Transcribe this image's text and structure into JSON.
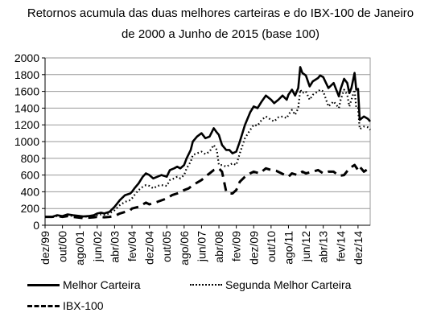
{
  "chart_data": {
    "type": "line",
    "title_line1": "Retornos acumula das duas melhores carteiras e do IBX-100 de Janeiro",
    "title_line2": "de 2000 a Junho de 2015 (base 100)",
    "xlabel": "",
    "ylabel": "",
    "ylim": [
      0,
      2000
    ],
    "yticks": [
      0,
      200,
      400,
      600,
      800,
      1000,
      1200,
      1400,
      1600,
      1800,
      2000
    ],
    "xlim": [
      1999.917,
      2015.5
    ],
    "xtick_labels": [
      "dez/99",
      "out/00",
      "ago/01",
      "jun/02",
      "abr/03",
      "fev/04",
      "dez/04",
      "out/05",
      "ago/06",
      "jun/07",
      "abr/08",
      "fev/09",
      "dez/09",
      "out/10",
      "ago/11",
      "jun/12",
      "abr/13",
      "fev/14",
      "dez/14"
    ],
    "xtick_positions": [
      1999.917,
      2000.75,
      2001.583,
      2002.417,
      2003.25,
      2004.083,
      2004.917,
      2005.75,
      2006.583,
      2007.417,
      2008.25,
      2009.083,
      2009.917,
      2010.75,
      2011.583,
      2012.417,
      2013.25,
      2014.083,
      2014.917
    ],
    "grid": "horizontal",
    "legend": "bottom",
    "series": [
      {
        "name": "Melhor Carteira",
        "style": "solid",
        "x": [
          1999.917,
          2000.25,
          2000.5,
          2000.75,
          2001.0,
          2001.25,
          2001.583,
          2001.75,
          2002.0,
          2002.25,
          2002.417,
          2002.6,
          2002.75,
          2003.0,
          2003.25,
          2003.5,
          2003.75,
          2004.0,
          2004.083,
          2004.2,
          2004.4,
          2004.6,
          2004.75,
          2004.917,
          2005.1,
          2005.3,
          2005.5,
          2005.75,
          2005.9,
          2006.1,
          2006.25,
          2006.4,
          2006.583,
          2006.7,
          2006.9,
          2007.0,
          2007.2,
          2007.417,
          2007.6,
          2007.8,
          2008.0,
          2008.15,
          2008.25,
          2008.4,
          2008.6,
          2008.75,
          2008.9,
          2009.083,
          2009.25,
          2009.5,
          2009.75,
          2009.917,
          2010.1,
          2010.3,
          2010.5,
          2010.75,
          2010.9,
          2011.1,
          2011.3,
          2011.5,
          2011.583,
          2011.75,
          2011.9,
          2012.05,
          2012.15,
          2012.25,
          2012.417,
          2012.6,
          2012.75,
          2013.0,
          2013.1,
          2013.25,
          2013.5,
          2013.75,
          2014.0,
          2014.083,
          2014.25,
          2014.4,
          2014.5,
          2014.6,
          2014.75,
          2014.833,
          2014.917,
          2015.0,
          2015.2,
          2015.4,
          2015.5
        ],
        "y": [
          100,
          100,
          120,
          110,
          130,
          120,
          110,
          105,
          110,
          120,
          140,
          150,
          140,
          160,
          220,
          300,
          360,
          380,
          400,
          440,
          500,
          580,
          620,
          600,
          560,
          580,
          600,
          580,
          660,
          680,
          700,
          680,
          720,
          800,
          900,
          1000,
          1060,
          1100,
          1040,
          1060,
          1160,
          1110,
          1080,
          960,
          900,
          900,
          860,
          880,
          1000,
          1200,
          1350,
          1420,
          1400,
          1480,
          1550,
          1500,
          1460,
          1500,
          1550,
          1500,
          1560,
          1620,
          1550,
          1640,
          1890,
          1820,
          1790,
          1660,
          1720,
          1760,
          1790,
          1770,
          1640,
          1700,
          1540,
          1630,
          1750,
          1700,
          1580,
          1640,
          1820,
          1620,
          1630,
          1260,
          1300,
          1270,
          1240
        ]
      },
      {
        "name": "Segunda Melhor Carteira",
        "style": "dotted",
        "x": [
          1999.917,
          2000.25,
          2000.5,
          2000.75,
          2001.0,
          2001.25,
          2001.583,
          2001.75,
          2002.0,
          2002.25,
          2002.417,
          2002.6,
          2002.75,
          2003.0,
          2003.25,
          2003.5,
          2003.75,
          2004.0,
          2004.083,
          2004.2,
          2004.4,
          2004.6,
          2004.75,
          2004.917,
          2005.1,
          2005.3,
          2005.5,
          2005.75,
          2005.9,
          2006.1,
          2006.25,
          2006.4,
          2006.583,
          2006.7,
          2006.9,
          2007.0,
          2007.2,
          2007.417,
          2007.6,
          2007.8,
          2008.0,
          2008.15,
          2008.25,
          2008.4,
          2008.6,
          2008.75,
          2008.9,
          2009.083,
          2009.25,
          2009.5,
          2009.75,
          2009.917,
          2010.1,
          2010.3,
          2010.5,
          2010.75,
          2010.9,
          2011.1,
          2011.3,
          2011.5,
          2011.583,
          2011.75,
          2011.9,
          2012.05,
          2012.15,
          2012.25,
          2012.417,
          2012.6,
          2012.75,
          2013.0,
          2013.1,
          2013.25,
          2013.5,
          2013.75,
          2014.0,
          2014.083,
          2014.25,
          2014.4,
          2014.5,
          2014.6,
          2014.75,
          2014.833,
          2014.917,
          2015.0,
          2015.2,
          2015.4,
          2015.5
        ],
        "y": [
          100,
          100,
          110,
          105,
          120,
          110,
          105,
          100,
          105,
          110,
          120,
          130,
          125,
          140,
          180,
          240,
          280,
          300,
          320,
          360,
          420,
          460,
          480,
          470,
          440,
          470,
          480,
          470,
          540,
          560,
          580,
          560,
          600,
          680,
          760,
          840,
          860,
          880,
          850,
          880,
          960,
          900,
          720,
          720,
          700,
          720,
          740,
          720,
          860,
          1040,
          1140,
          1200,
          1190,
          1260,
          1300,
          1260,
          1240,
          1290,
          1300,
          1280,
          1320,
          1380,
          1320,
          1400,
          1620,
          1580,
          1600,
          1500,
          1560,
          1600,
          1620,
          1600,
          1420,
          1480,
          1400,
          1500,
          1620,
          1560,
          1420,
          1500,
          1620,
          1400,
          1400,
          1150,
          1180,
          1170,
          1140
        ]
      },
      {
        "name": "IBX-100",
        "style": "dashed",
        "x": [
          1999.917,
          2000.25,
          2000.5,
          2000.75,
          2001.0,
          2001.25,
          2001.583,
          2001.75,
          2002.0,
          2002.25,
          2002.417,
          2002.6,
          2002.75,
          2003.0,
          2003.25,
          2003.5,
          2003.75,
          2004.0,
          2004.083,
          2004.4,
          2004.75,
          2004.917,
          2005.3,
          2005.75,
          2006.0,
          2006.25,
          2006.583,
          2006.8,
          2007.0,
          2007.417,
          2007.7,
          2008.0,
          2008.25,
          2008.4,
          2008.6,
          2008.75,
          2008.9,
          2009.083,
          2009.25,
          2009.5,
          2009.75,
          2009.917,
          2010.2,
          2010.5,
          2010.75,
          2011.0,
          2011.25,
          2011.583,
          2011.75,
          2012.0,
          2012.25,
          2012.417,
          2012.75,
          2013.0,
          2013.25,
          2013.5,
          2013.75,
          2014.0,
          2014.25,
          2014.5,
          2014.75,
          2014.917,
          2015.0,
          2015.2,
          2015.5
        ],
        "y": [
          100,
          100,
          110,
          100,
          110,
          100,
          90,
          85,
          90,
          95,
          100,
          100,
          95,
          100,
          110,
          140,
          160,
          180,
          200,
          220,
          270,
          250,
          280,
          320,
          360,
          380,
          420,
          440,
          480,
          540,
          600,
          660,
          680,
          640,
          400,
          380,
          380,
          420,
          520,
          580,
          620,
          640,
          620,
          680,
          660,
          650,
          620,
          580,
          620,
          600,
          640,
          620,
          640,
          660,
          620,
          640,
          640,
          590,
          600,
          680,
          720,
          660,
          700,
          640,
          690
        ]
      }
    ]
  }
}
